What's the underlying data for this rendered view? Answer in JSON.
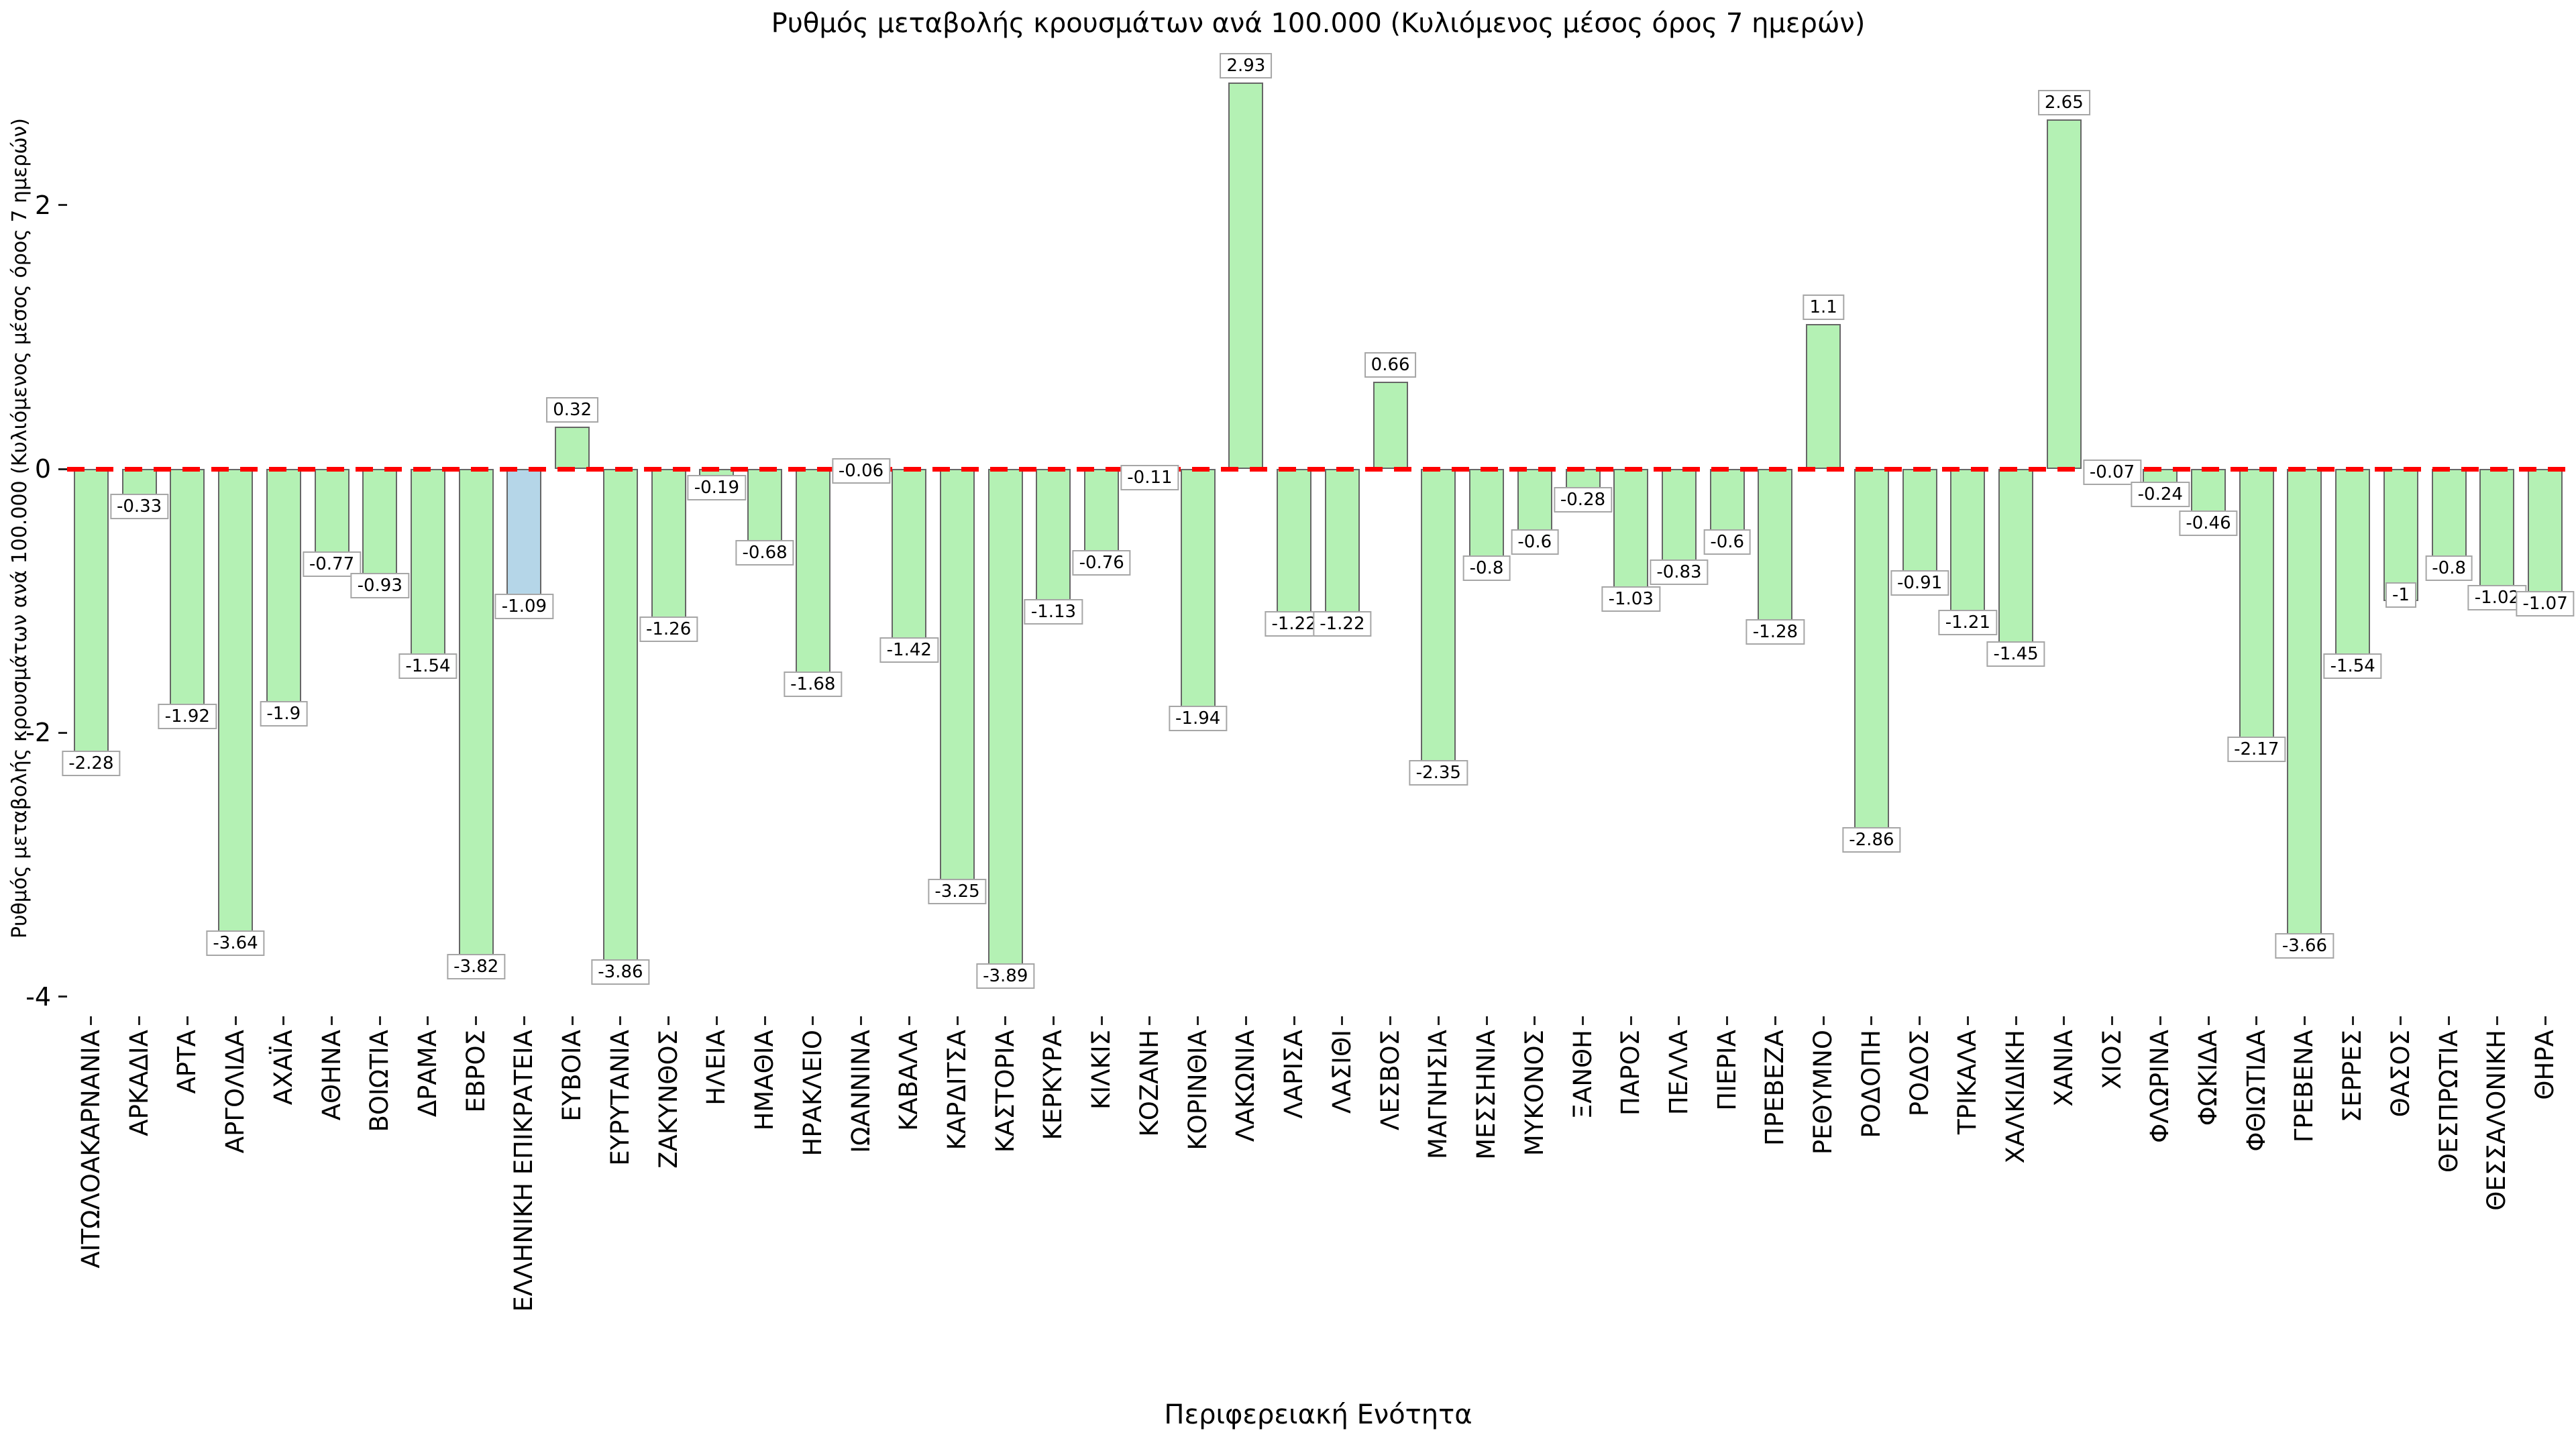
{
  "chart_data": {
    "type": "bar",
    "title": "Ρυθμός μεταβολής κρουσμάτων ανά 100.000 (Κυλιόμενος μέσος όρος 7 ημερών)",
    "xlabel": "Περιφερειακή Ενότητα",
    "ylabel": "Ρυθμός μεταβολής κρουσμάτων ανά 100.000 (Κυλιόμενος μέσος όρος 7 ημερών)",
    "categories": [
      "ΑΙΤΩΛΟΑΚΑΡΝΑΝΙΑ",
      "ΑΡΚΑΔΙΑ",
      "ΑΡΤΑ",
      "ΑΡΓΟΛΙΔΑ",
      "ΑΧΑΪΑ",
      "ΑΘΗΝΑ",
      "ΒΟΙΩΤΙΑ",
      "ΔΡΑΜΑ",
      "ΕΒΡΟΣ",
      "ΕΛΛΗΝΙΚΗ ΕΠΙΚΡΑΤΕΙΑ",
      "ΕΥΒΟΙΑ",
      "ΕΥΡΥΤΑΝΙΑ",
      "ΖΑΚΥΝΘΟΣ",
      "ΗΛΕΙΑ",
      "ΗΜΑΘΙΑ",
      "ΗΡΑΚΛΕΙΟ",
      "ΙΩΑΝΝΙΝΑ",
      "ΚΑΒΑΛΑ",
      "ΚΑΡΔΙΤΣΑ",
      "ΚΑΣΤΟΡΙΑ",
      "ΚΕΡΚΥΡΑ",
      "ΚΙΛΚΙΣ",
      "ΚΟΖΑΝΗ",
      "ΚΟΡΙΝΘΙΑ",
      "ΛΑΚΩΝΙΑ",
      "ΛΑΡΙΣΑ",
      "ΛΑΣΙΘΙ",
      "ΛΕΣΒΟΣ",
      "ΜΑΓΝΗΣΙΑ",
      "ΜΕΣΣΗΝΙΑ",
      "ΜΥΚΟΝΟΣ",
      "ΞΑΝΘΗ",
      "ΠΑΡΟΣ",
      "ΠΕΛΛΑ",
      "ΠΙΕΡΙΑ",
      "ΠΡΕΒΕΖΑ",
      "ΡΕΘΥΜΝΟ",
      "ΡΟΔΟΠΗ",
      "ΡΟΔΟΣ",
      "ΤΡΙΚΑΛΑ",
      "ΧΑΛΚΙΔΙΚΗ",
      "ΧΑΝΙΑ",
      "ΧΙΟΣ",
      "ΦΛΩΡΙΝΑ",
      "ΦΩΚΙΔΑ",
      "ΦΘΙΩΤΙΔΑ",
      "ΓΡΕΒΕΝΑ",
      "ΣΕΡΡΕΣ",
      "ΘΑΣΟΣ",
      "ΘΕΣΠΡΩΤΙΑ",
      "ΘΕΣΣΑΛΟΝΙΚΗ",
      "ΘΗΡΑ"
    ],
    "values": [
      -2.28,
      -0.33,
      -1.92,
      -3.64,
      -1.9,
      -0.77,
      -0.93,
      -1.54,
      -3.82,
      -1.09,
      0.32,
      -3.86,
      -1.26,
      -0.19,
      -0.68,
      -1.68,
      -0.06,
      -1.42,
      -3.25,
      -3.89,
      -1.13,
      -0.76,
      -0.11,
      -1.94,
      2.93,
      -1.22,
      -1.22,
      0.66,
      -2.35,
      -0.8,
      -0.6,
      -0.28,
      -1.03,
      -0.83,
      -0.6,
      -1.28,
      1.1,
      -2.86,
      -0.91,
      -1.21,
      -1.45,
      2.65,
      -0.07,
      -0.24,
      -0.46,
      -2.17,
      -3.66,
      -1.54,
      -1,
      -0.8,
      -1.02,
      -1.07
    ],
    "highlight_category": "ΕΛΛΗΝΙΚΗ ΕΠΙΚΡΑΤΕΙΑ",
    "yticks": [
      2,
      0,
      -2,
      -4
    ],
    "ylim": [
      -4.15,
      3.25
    ],
    "grid": false,
    "legend": null,
    "zero_line": {
      "style": "dashed",
      "color": "#ff0000"
    },
    "colors": {
      "bar_fill": "#b4f1b4",
      "bar_border": "#666666",
      "highlight_fill": "#b5d6e8",
      "label_box_bg": "#ffffff",
      "label_box_border": "#a6a6a6",
      "text": "#000000"
    }
  }
}
